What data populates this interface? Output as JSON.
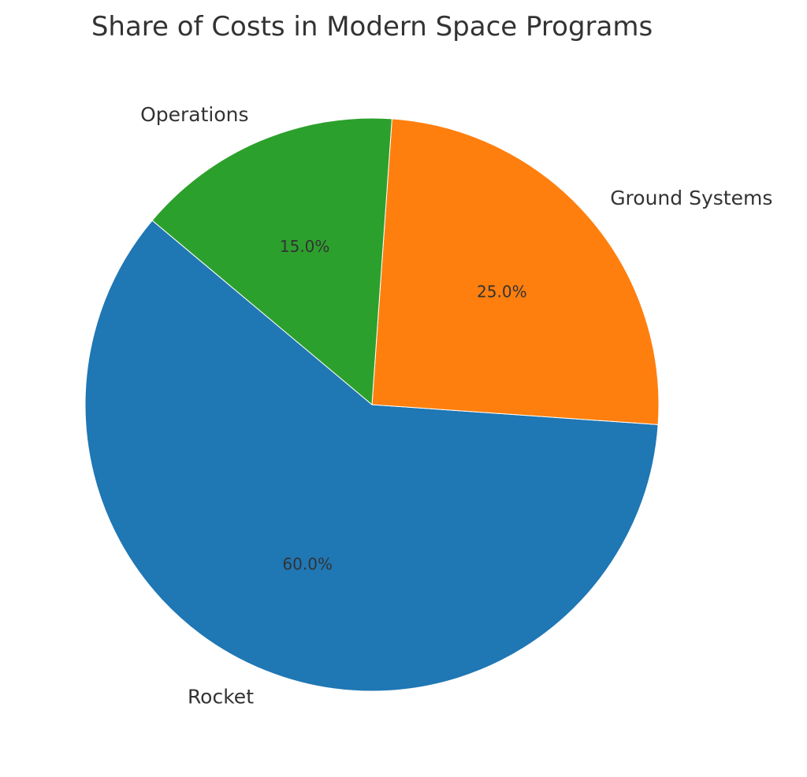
{
  "chart_data": {
    "type": "pie",
    "title": "Share of Costs in Modern Space Programs",
    "slices": [
      {
        "label": "Rocket",
        "value": 60.0,
        "pct_label": "60.0%",
        "color": "#1f77b4"
      },
      {
        "label": "Ground Systems",
        "value": 25.0,
        "pct_label": "25.0%",
        "color": "#ff7f0e"
      },
      {
        "label": "Operations",
        "value": 15.0,
        "pct_label": "15.0%",
        "color": "#2ca02c"
      }
    ],
    "start_angle_deg": 140,
    "direction": "counterclockwise"
  }
}
